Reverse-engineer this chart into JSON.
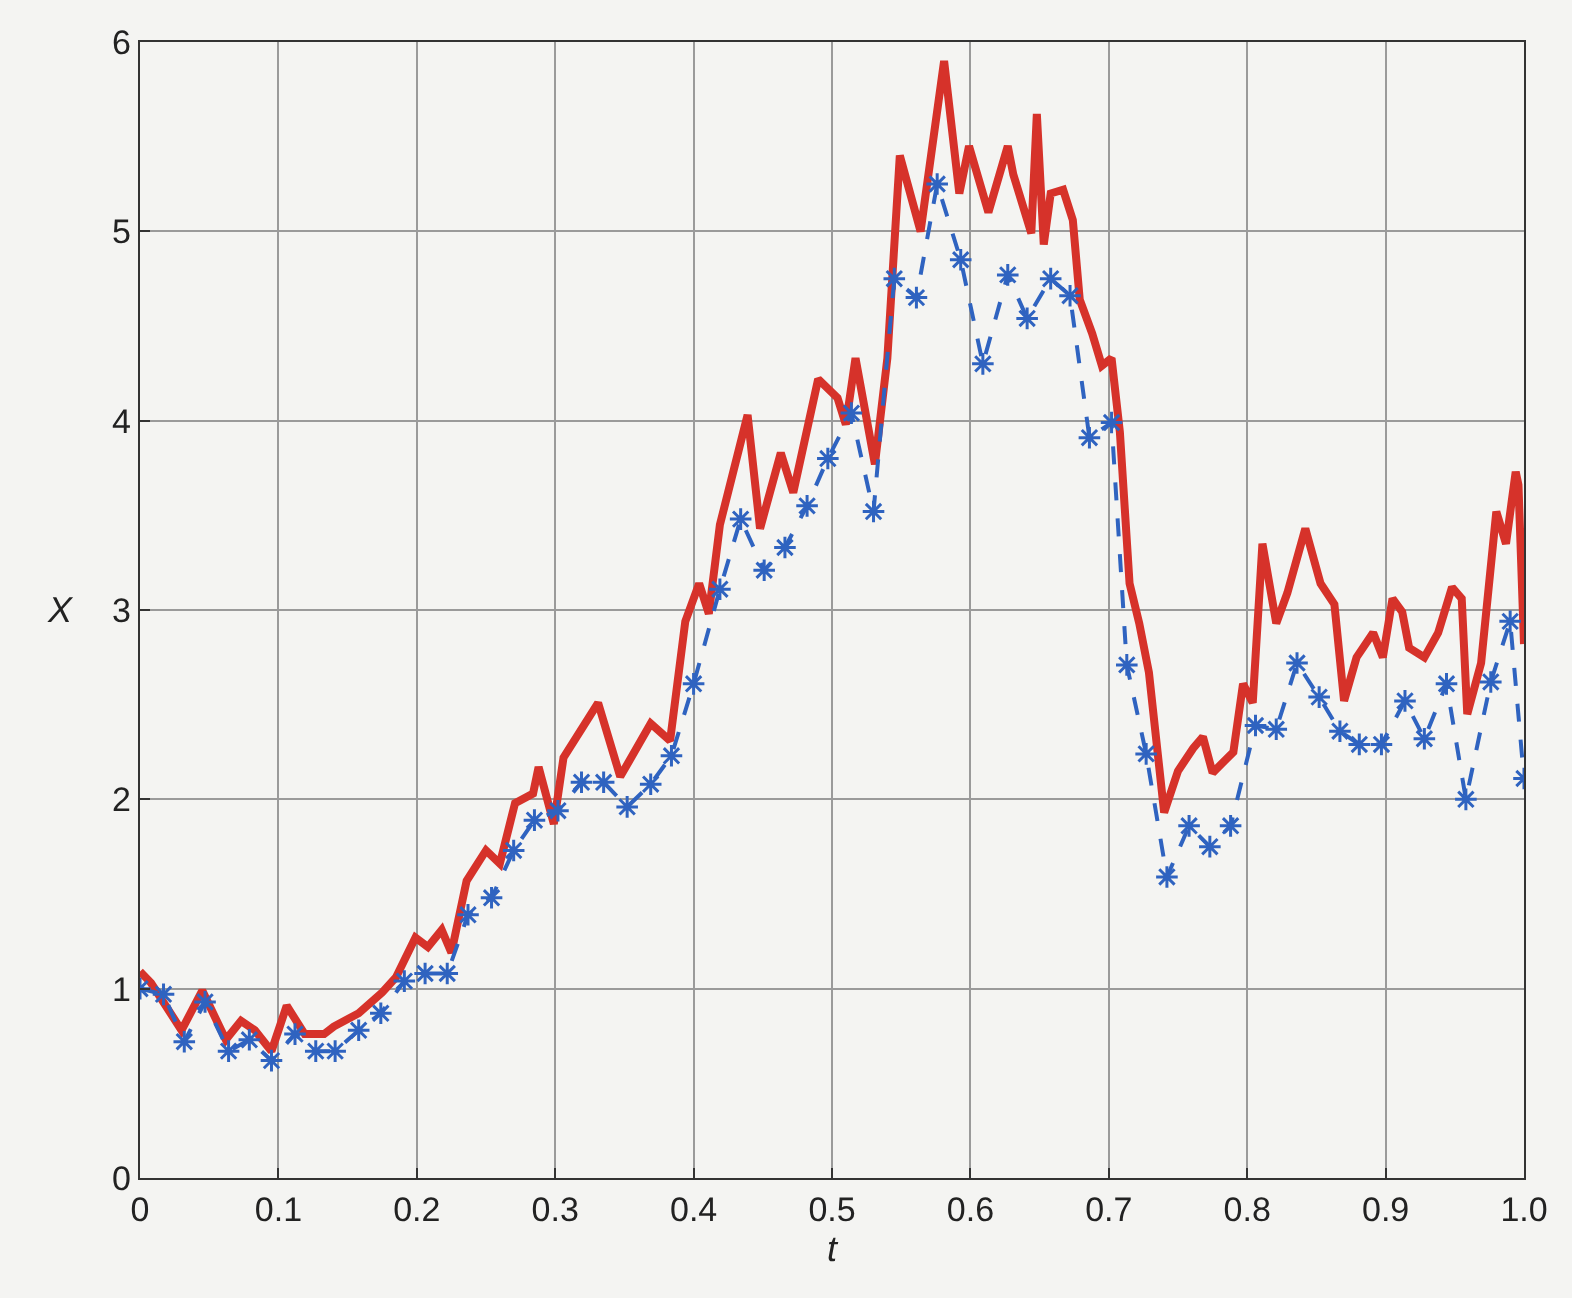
{
  "chart_data": {
    "type": "line",
    "xlabel": "t",
    "ylabel": "X",
    "xlim": [
      0,
      1
    ],
    "ylim": [
      0,
      6
    ],
    "xticks": [
      0,
      0.1,
      0.2,
      0.3,
      0.4,
      0.5,
      0.6,
      0.7,
      0.8,
      0.9,
      {
        "value": 1,
        "label": "1.0"
      }
    ],
    "yticks": [
      0,
      1,
      2,
      3,
      4,
      5,
      6
    ],
    "grid": true,
    "series": [
      {
        "color": "#d6322a",
        "line_style": "solid",
        "marker": "none",
        "x": [
          0,
          0.008,
          0.03,
          0.045,
          0.062,
          0.073,
          0.083,
          0.095,
          0.106,
          0.119,
          0.133,
          0.14,
          0.158,
          0.175,
          0.185,
          0.199,
          0.208,
          0.218,
          0.225,
          0.236,
          0.25,
          0.26,
          0.271,
          0.284,
          0.288,
          0.299,
          0.306,
          0.331,
          0.347,
          0.369,
          0.383,
          0.394,
          0.404,
          0.411,
          0.419,
          0.439,
          0.448,
          0.463,
          0.472,
          0.49,
          0.504,
          0.51,
          0.517,
          0.531,
          0.54,
          0.549,
          0.564,
          0.581,
          0.592,
          0.599,
          0.613,
          0.627,
          0.631,
          0.644,
          0.648,
          0.653,
          0.658,
          0.667,
          0.674,
          0.679,
          0.688,
          0.695,
          0.702,
          0.708,
          0.715,
          0.722,
          0.729,
          0.74,
          0.75,
          0.761,
          0.768,
          0.775,
          0.79,
          0.797,
          0.804,
          0.811,
          0.821,
          0.829,
          0.842,
          0.853,
          0.863,
          0.87,
          0.879,
          0.891,
          0.898,
          0.905,
          0.912,
          0.917,
          0.928,
          0.938,
          0.948,
          0.955,
          0.959,
          0.969,
          0.98,
          0.987,
          0.994,
          0.996,
          1.0
        ],
        "values": [
          1.09,
          1.03,
          0.78,
          0.99,
          0.73,
          0.83,
          0.78,
          0.67,
          0.91,
          0.76,
          0.76,
          0.8,
          0.87,
          0.98,
          1.06,
          1.27,
          1.22,
          1.31,
          1.19,
          1.57,
          1.73,
          1.66,
          1.98,
          2.03,
          2.17,
          1.87,
          2.22,
          2.51,
          2.12,
          2.4,
          2.31,
          2.94,
          3.14,
          2.98,
          3.45,
          4.03,
          3.43,
          3.83,
          3.62,
          4.22,
          4.12,
          3.98,
          4.33,
          3.77,
          4.33,
          5.4,
          5.0,
          5.9,
          5.2,
          5.45,
          5.1,
          5.45,
          5.3,
          4.99,
          5.62,
          4.93,
          5.2,
          5.22,
          5.06,
          4.64,
          4.46,
          4.29,
          4.33,
          3.94,
          3.14,
          2.93,
          2.67,
          1.93,
          2.15,
          2.27,
          2.33,
          2.14,
          2.25,
          2.61,
          2.51,
          3.35,
          2.93,
          3.09,
          3.43,
          3.14,
          3.03,
          2.52,
          2.75,
          2.88,
          2.75,
          3.06,
          2.99,
          2.8,
          2.75,
          2.88,
          3.12,
          3.06,
          2.45,
          2.72,
          3.52,
          3.35,
          3.73,
          3.66,
          2.82
        ]
      },
      {
        "color": "#2f63c0",
        "line_style": "dashed",
        "marker": "cross",
        "x": [
          0,
          0.017,
          0.032,
          0.047,
          0.064,
          0.079,
          0.095,
          0.112,
          0.127,
          0.141,
          0.158,
          0.174,
          0.191,
          0.206,
          0.222,
          0.237,
          0.254,
          0.27,
          0.285,
          0.302,
          0.319,
          0.335,
          0.352,
          0.369,
          0.384,
          0.4,
          0.419,
          0.434,
          0.451,
          0.466,
          0.482,
          0.497,
          0.514,
          0.53,
          0.545,
          0.561,
          0.576,
          0.593,
          0.609,
          0.627,
          0.641,
          0.658,
          0.672,
          0.686,
          0.702,
          0.713,
          0.727,
          0.742,
          0.758,
          0.773,
          0.788,
          0.806,
          0.821,
          0.836,
          0.852,
          0.867,
          0.881,
          0.897,
          0.914,
          0.928,
          0.944,
          0.958,
          0.976,
          0.99,
          1.0
        ],
        "values": [
          1.0,
          0.97,
          0.72,
          0.93,
          0.67,
          0.73,
          0.62,
          0.76,
          0.67,
          0.67,
          0.78,
          0.87,
          1.04,
          1.08,
          1.08,
          1.39,
          1.48,
          1.73,
          1.89,
          1.94,
          2.09,
          2.09,
          1.96,
          2.08,
          2.23,
          2.61,
          3.11,
          3.48,
          3.21,
          3.33,
          3.55,
          3.8,
          4.04,
          3.52,
          4.75,
          4.65,
          5.25,
          4.85,
          4.3,
          4.77,
          4.54,
          4.75,
          4.66,
          3.91,
          3.99,
          2.71,
          2.24,
          1.59,
          1.86,
          1.75,
          1.86,
          2.39,
          2.37,
          2.72,
          2.54,
          2.36,
          2.29,
          2.29,
          2.52,
          2.32,
          2.61,
          2.0,
          2.62,
          2.94,
          2.11
        ]
      }
    ]
  }
}
